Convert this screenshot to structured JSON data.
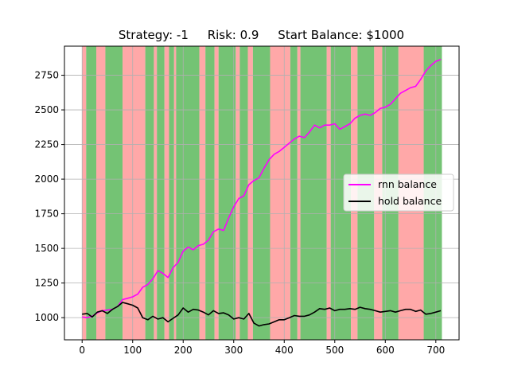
{
  "chart_data": {
    "type": "line",
    "title": "Strategy: -1     Risk: 0.9     Start Balance: $1000",
    "xlabel": "",
    "ylabel": "",
    "xlim": [
      -35,
      746
    ],
    "ylim": [
      840,
      2960
    ],
    "grid": true,
    "legend_position": "right",
    "x_ticks": [
      0,
      100,
      200,
      300,
      400,
      500,
      600,
      700
    ],
    "y_ticks": [
      1000,
      1250,
      1500,
      1750,
      2000,
      2250,
      2500,
      2750
    ],
    "series": [
      {
        "name": "rnn balance",
        "color": "#ff00ff",
        "x": [
          0,
          10,
          20,
          30,
          40,
          50,
          60,
          70,
          80,
          90,
          100,
          110,
          120,
          130,
          140,
          150,
          160,
          170,
          180,
          190,
          200,
          210,
          220,
          230,
          240,
          250,
          260,
          270,
          280,
          290,
          300,
          310,
          320,
          330,
          340,
          350,
          360,
          370,
          380,
          390,
          400,
          410,
          420,
          430,
          440,
          450,
          460,
          470,
          480,
          490,
          500,
          510,
          520,
          530,
          540,
          550,
          560,
          570,
          580,
          590,
          600,
          610,
          620,
          630,
          640,
          650,
          660,
          670,
          680,
          690,
          700,
          710
        ],
        "y": [
          1005,
          1000,
          1010,
          1035,
          1050,
          1055,
          1060,
          1080,
          1130,
          1140,
          1150,
          1170,
          1220,
          1240,
          1280,
          1340,
          1320,
          1290,
          1360,
          1400,
          1480,
          1510,
          1490,
          1520,
          1530,
          1560,
          1620,
          1640,
          1630,
          1720,
          1800,
          1860,
          1880,
          1960,
          1990,
          2010,
          2080,
          2140,
          2180,
          2200,
          2230,
          2260,
          2290,
          2310,
          2300,
          2340,
          2390,
          2370,
          2390,
          2390,
          2400,
          2360,
          2380,
          2400,
          2440,
          2460,
          2470,
          2460,
          2480,
          2510,
          2520,
          2540,
          2580,
          2620,
          2640,
          2660,
          2670,
          2720,
          2780,
          2820,
          2850,
          2865
        ]
      },
      {
        "name": "hold balance",
        "color": "#000000",
        "x": [
          0,
          10,
          20,
          30,
          40,
          50,
          60,
          70,
          80,
          90,
          100,
          110,
          120,
          130,
          140,
          150,
          160,
          170,
          180,
          190,
          200,
          210,
          220,
          230,
          240,
          250,
          260,
          270,
          280,
          290,
          300,
          310,
          320,
          330,
          340,
          350,
          360,
          370,
          380,
          390,
          400,
          410,
          420,
          430,
          440,
          450,
          460,
          470,
          480,
          490,
          500,
          510,
          520,
          530,
          540,
          550,
          560,
          570,
          580,
          590,
          600,
          610,
          620,
          630,
          640,
          650,
          660,
          670,
          680,
          690,
          700,
          710
        ],
        "y": [
          1025,
          1030,
          1005,
          1040,
          1050,
          1030,
          1060,
          1080,
          1110,
          1100,
          1090,
          1070,
          1000,
          985,
          1010,
          990,
          1000,
          970,
          995,
          1020,
          1070,
          1040,
          1060,
          1055,
          1040,
          1020,
          1050,
          1030,
          1035,
          1020,
          990,
          1000,
          990,
          1030,
          960,
          940,
          950,
          955,
          970,
          985,
          985,
          1000,
          1015,
          1010,
          1010,
          1020,
          1040,
          1065,
          1060,
          1070,
          1050,
          1060,
          1060,
          1065,
          1060,
          1075,
          1065,
          1060,
          1050,
          1040,
          1045,
          1050,
          1040,
          1050,
          1060,
          1060,
          1045,
          1055,
          1025,
          1030,
          1040,
          1050
        ]
      }
    ],
    "background_regions": {
      "colors": {
        "buy": "#5cb85c",
        "sell": "#ff9f9f"
      },
      "regions": [
        {
          "start": 0,
          "end": 8,
          "kind": "sell"
        },
        {
          "start": 8,
          "end": 28,
          "kind": "buy"
        },
        {
          "start": 28,
          "end": 46,
          "kind": "sell"
        },
        {
          "start": 46,
          "end": 80,
          "kind": "buy"
        },
        {
          "start": 80,
          "end": 125,
          "kind": "sell"
        },
        {
          "start": 125,
          "end": 142,
          "kind": "buy"
        },
        {
          "start": 142,
          "end": 148,
          "kind": "sell"
        },
        {
          "start": 148,
          "end": 163,
          "kind": "buy"
        },
        {
          "start": 163,
          "end": 172,
          "kind": "sell"
        },
        {
          "start": 172,
          "end": 182,
          "kind": "buy"
        },
        {
          "start": 182,
          "end": 186,
          "kind": "sell"
        },
        {
          "start": 186,
          "end": 232,
          "kind": "buy"
        },
        {
          "start": 232,
          "end": 244,
          "kind": "sell"
        },
        {
          "start": 244,
          "end": 262,
          "kind": "buy"
        },
        {
          "start": 262,
          "end": 270,
          "kind": "sell"
        },
        {
          "start": 270,
          "end": 304,
          "kind": "buy"
        },
        {
          "start": 304,
          "end": 312,
          "kind": "sell"
        },
        {
          "start": 312,
          "end": 328,
          "kind": "buy"
        },
        {
          "start": 328,
          "end": 338,
          "kind": "sell"
        },
        {
          "start": 338,
          "end": 372,
          "kind": "buy"
        },
        {
          "start": 372,
          "end": 412,
          "kind": "sell"
        },
        {
          "start": 412,
          "end": 426,
          "kind": "buy"
        },
        {
          "start": 426,
          "end": 432,
          "kind": "sell"
        },
        {
          "start": 432,
          "end": 484,
          "kind": "buy"
        },
        {
          "start": 484,
          "end": 492,
          "kind": "sell"
        },
        {
          "start": 492,
          "end": 532,
          "kind": "buy"
        },
        {
          "start": 532,
          "end": 545,
          "kind": "sell"
        },
        {
          "start": 545,
          "end": 578,
          "kind": "buy"
        },
        {
          "start": 578,
          "end": 594,
          "kind": "sell"
        },
        {
          "start": 594,
          "end": 626,
          "kind": "buy"
        },
        {
          "start": 626,
          "end": 676,
          "kind": "sell"
        },
        {
          "start": 676,
          "end": 712,
          "kind": "buy"
        }
      ]
    }
  }
}
